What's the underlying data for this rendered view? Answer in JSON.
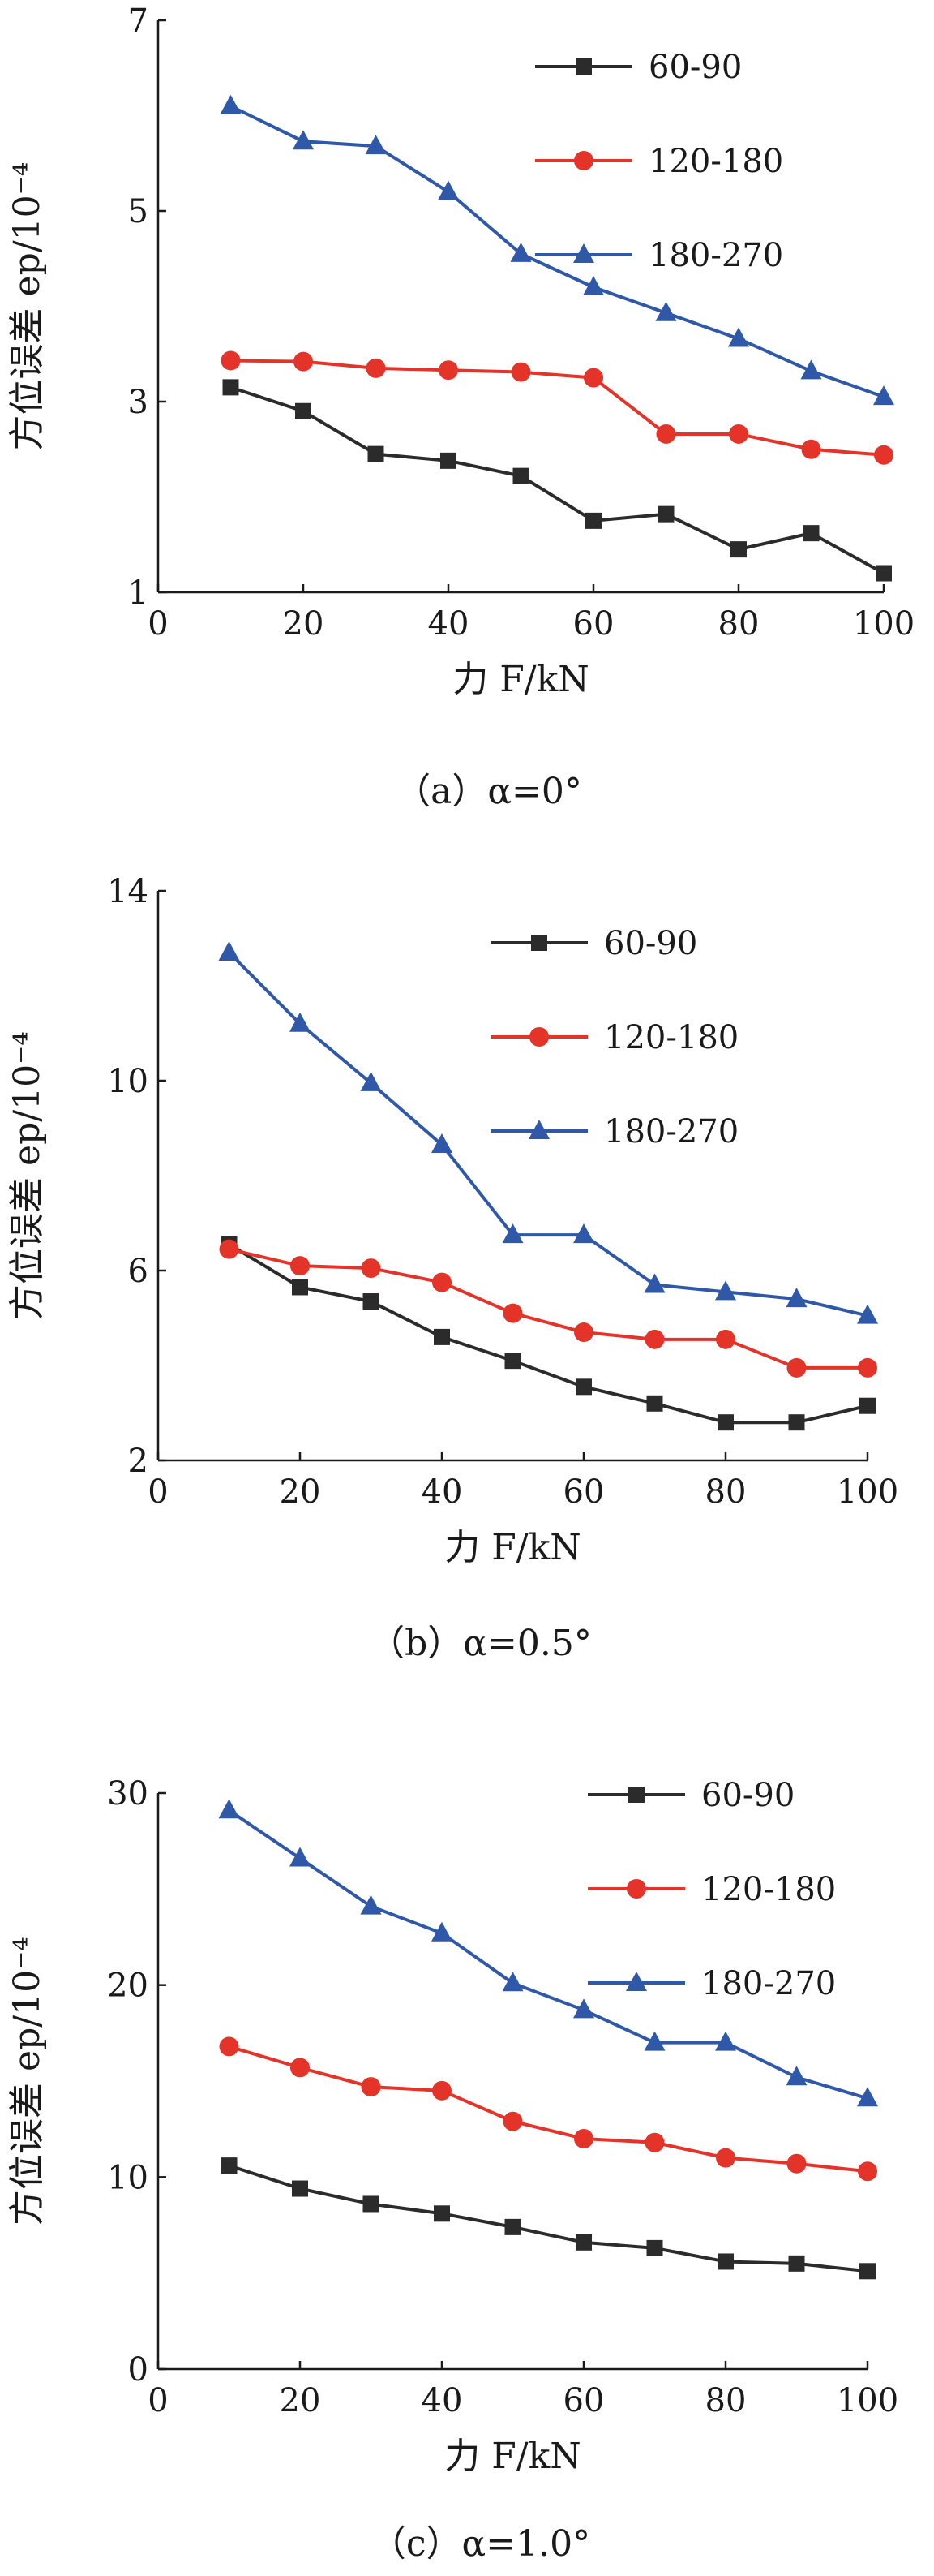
{
  "chart_data": [
    {
      "type": "line",
      "caption": "（a）α=0°",
      "xlabel": "力 F/kN",
      "ylabel": "方位误差 ep/10⁻⁴",
      "xlim": [
        0,
        100
      ],
      "ylim": [
        1,
        7
      ],
      "xticks": [
        0,
        20,
        40,
        60,
        80,
        100
      ],
      "yticks": [
        1,
        3,
        5,
        7
      ],
      "legend_position": "top-right",
      "grid": false,
      "x": [
        10,
        20,
        30,
        40,
        50,
        60,
        70,
        80,
        90,
        100
      ],
      "series": [
        {
          "name": "60-90",
          "color": "#2b2b2b",
          "marker": "square",
          "values": [
            3.15,
            2.9,
            2.45,
            2.38,
            2.22,
            1.75,
            1.82,
            1.45,
            1.62,
            1.2
          ]
        },
        {
          "name": "120-180",
          "color": "#e4342a",
          "marker": "circle",
          "values": [
            3.43,
            3.42,
            3.35,
            3.33,
            3.31,
            3.25,
            2.66,
            2.66,
            2.5,
            2.44
          ]
        },
        {
          "name": "180-270",
          "color": "#2f59a8",
          "marker": "triangle",
          "values": [
            6.1,
            5.73,
            5.68,
            5.2,
            4.55,
            4.2,
            3.93,
            3.66,
            3.32,
            3.05
          ]
        }
      ]
    },
    {
      "type": "line",
      "caption": "（b）α=0.5°",
      "xlabel": "力 F/kN",
      "ylabel": "方位误差 ep/10⁻⁴",
      "xlim": [
        0,
        100
      ],
      "ylim": [
        2,
        14
      ],
      "xticks": [
        0,
        20,
        40,
        60,
        80,
        100
      ],
      "yticks": [
        2,
        6,
        10,
        14
      ],
      "legend_position": "top-right",
      "grid": false,
      "x": [
        10,
        20,
        30,
        40,
        50,
        60,
        70,
        80,
        90,
        100
      ],
      "series": [
        {
          "name": "60-90",
          "color": "#2b2b2b",
          "marker": "square",
          "values": [
            6.55,
            5.65,
            5.35,
            4.6,
            4.1,
            3.55,
            3.2,
            2.8,
            2.8,
            3.15
          ]
        },
        {
          "name": "120-180",
          "color": "#e4342a",
          "marker": "circle",
          "values": [
            6.45,
            6.1,
            6.05,
            5.75,
            5.1,
            4.7,
            4.55,
            4.55,
            3.95,
            3.95
          ]
        },
        {
          "name": "180-270",
          "color": "#2f59a8",
          "marker": "triangle",
          "values": [
            12.7,
            11.2,
            9.95,
            8.65,
            6.75,
            6.75,
            5.7,
            5.55,
            5.4,
            5.05
          ]
        }
      ]
    },
    {
      "type": "line",
      "caption": "（c）α=1.0°",
      "xlabel": "力 F/kN",
      "ylabel": "方位误差 ep/10⁻⁴",
      "xlim": [
        0,
        100
      ],
      "ylim": [
        0,
        30
      ],
      "xticks": [
        0,
        20,
        40,
        60,
        80,
        100
      ],
      "yticks": [
        0,
        10,
        20,
        30
      ],
      "legend_position": "top-right",
      "grid": false,
      "x": [
        10,
        20,
        30,
        40,
        50,
        60,
        70,
        80,
        90,
        100
      ],
      "series": [
        {
          "name": "60-90",
          "color": "#2b2b2b",
          "marker": "square",
          "values": [
            10.6,
            9.4,
            8.6,
            8.1,
            7.4,
            6.6,
            6.3,
            5.6,
            5.5,
            5.1
          ]
        },
        {
          "name": "120-180",
          "color": "#e4342a",
          "marker": "circle",
          "values": [
            16.8,
            15.7,
            14.7,
            14.5,
            12.9,
            12.0,
            11.8,
            11.0,
            10.7,
            10.3
          ]
        },
        {
          "name": "180-270",
          "color": "#2f59a8",
          "marker": "triangle",
          "values": [
            29.1,
            26.6,
            24.1,
            22.7,
            20.1,
            18.7,
            17.0,
            17.0,
            15.2,
            14.1
          ]
        }
      ]
    }
  ]
}
